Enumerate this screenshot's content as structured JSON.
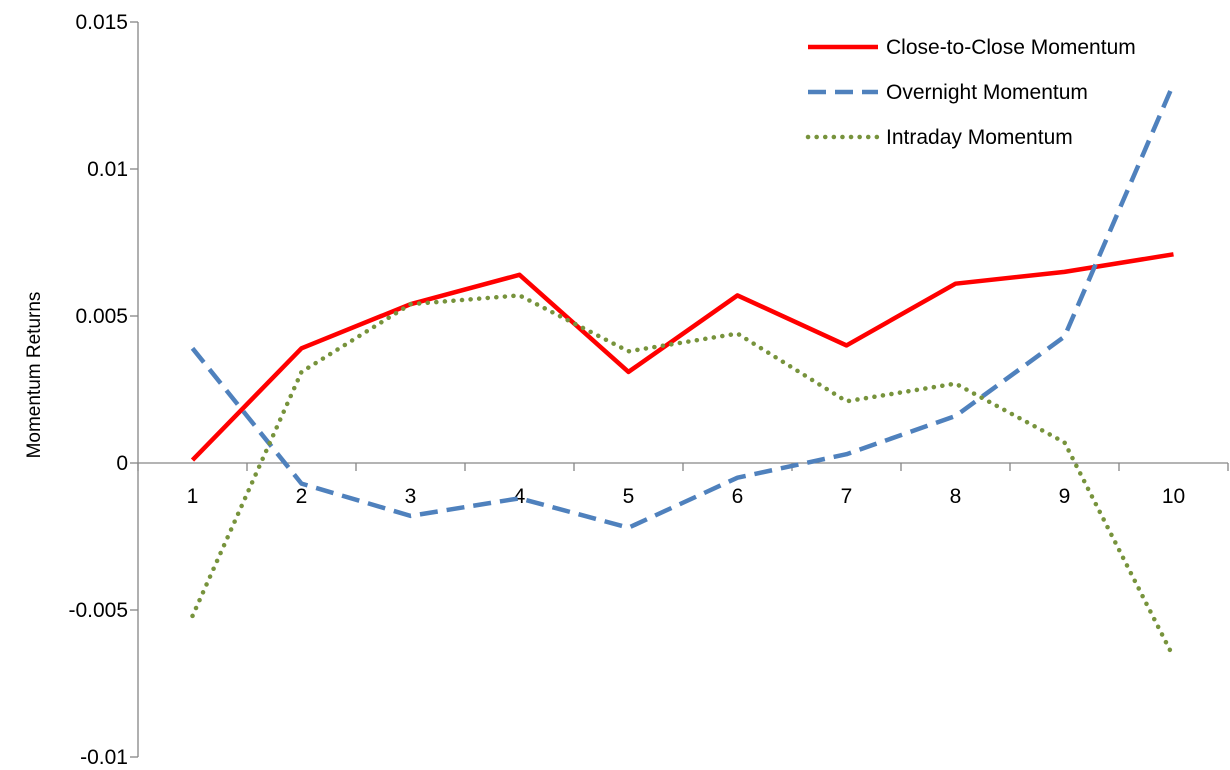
{
  "chart_data": {
    "type": "line",
    "title": "",
    "xlabel": "",
    "ylabel": "Momentum Returns",
    "categories": [
      "1",
      "2",
      "3",
      "4",
      "5",
      "6",
      "7",
      "8",
      "9",
      "10"
    ],
    "ylim": [
      -0.01,
      0.015
    ],
    "yticks": [
      -0.01,
      -0.005,
      0,
      0.005,
      0.01,
      0.015
    ],
    "ytick_labels": [
      "-0.01",
      "-0.005",
      "0",
      "0.005",
      "0.01",
      "0.015"
    ],
    "grid": false,
    "legend_position": "top-right",
    "series": [
      {
        "name": "Close-to-Close Momentum",
        "values": [
          0.0001,
          0.0039,
          0.0054,
          0.0064,
          0.0031,
          0.0057,
          0.004,
          0.0061,
          0.0065,
          0.0071
        ],
        "color": "#ff0000",
        "style": "solid"
      },
      {
        "name": "Overnight Momentum",
        "values": [
          0.0039,
          -0.0007,
          -0.0018,
          -0.0012,
          -0.0022,
          -0.0005,
          0.0003,
          0.0016,
          0.0043,
          0.0129
        ],
        "color": "#4f81bd",
        "style": "dashed"
      },
      {
        "name": "Intraday Momentum",
        "values": [
          -0.0052,
          0.0031,
          0.0054,
          0.0057,
          0.0038,
          0.0044,
          0.0021,
          0.0027,
          0.0007,
          -0.0066
        ],
        "color": "#77933c",
        "style": "dotted"
      }
    ]
  }
}
